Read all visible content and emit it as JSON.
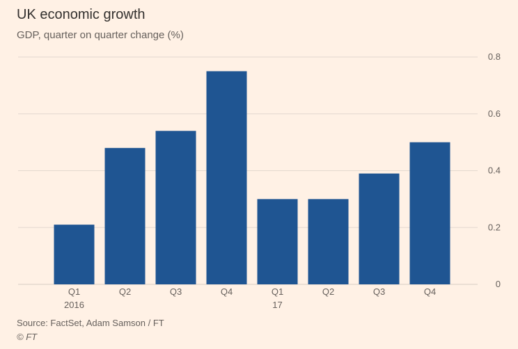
{
  "header": {
    "title": "UK economic growth",
    "subtitle": "GDP, quarter on quarter change (%)"
  },
  "footer": {
    "source": "Source: FactSet, Adam Samson / FT",
    "copyright": "© FT"
  },
  "colors": {
    "background": "#fff1e5",
    "bar": "#1f5592",
    "grid": "#e3d8cf",
    "text": "#66605c",
    "title": "#33302e"
  },
  "chart_data": {
    "type": "bar",
    "title": "UK economic growth",
    "subtitle": "GDP, quarter on quarter change (%)",
    "xlabel": "",
    "ylabel": "",
    "categories": [
      "Q1",
      "Q2",
      "Q3",
      "Q4",
      "Q1",
      "Q2",
      "Q3",
      "Q4"
    ],
    "year_labels": [
      "2016",
      "",
      "",
      "",
      "17",
      "",
      "",
      ""
    ],
    "values": [
      0.21,
      0.48,
      0.54,
      0.75,
      0.3,
      0.3,
      0.39,
      0.5
    ],
    "ylim": [
      0,
      0.8
    ],
    "yticks": [
      0,
      0.2,
      0.4,
      0.6,
      0.8
    ],
    "ytick_labels": [
      "0",
      "0.2",
      "0.4",
      "0.6",
      "0.8"
    ],
    "y_axis_side": "right",
    "grid": true
  }
}
